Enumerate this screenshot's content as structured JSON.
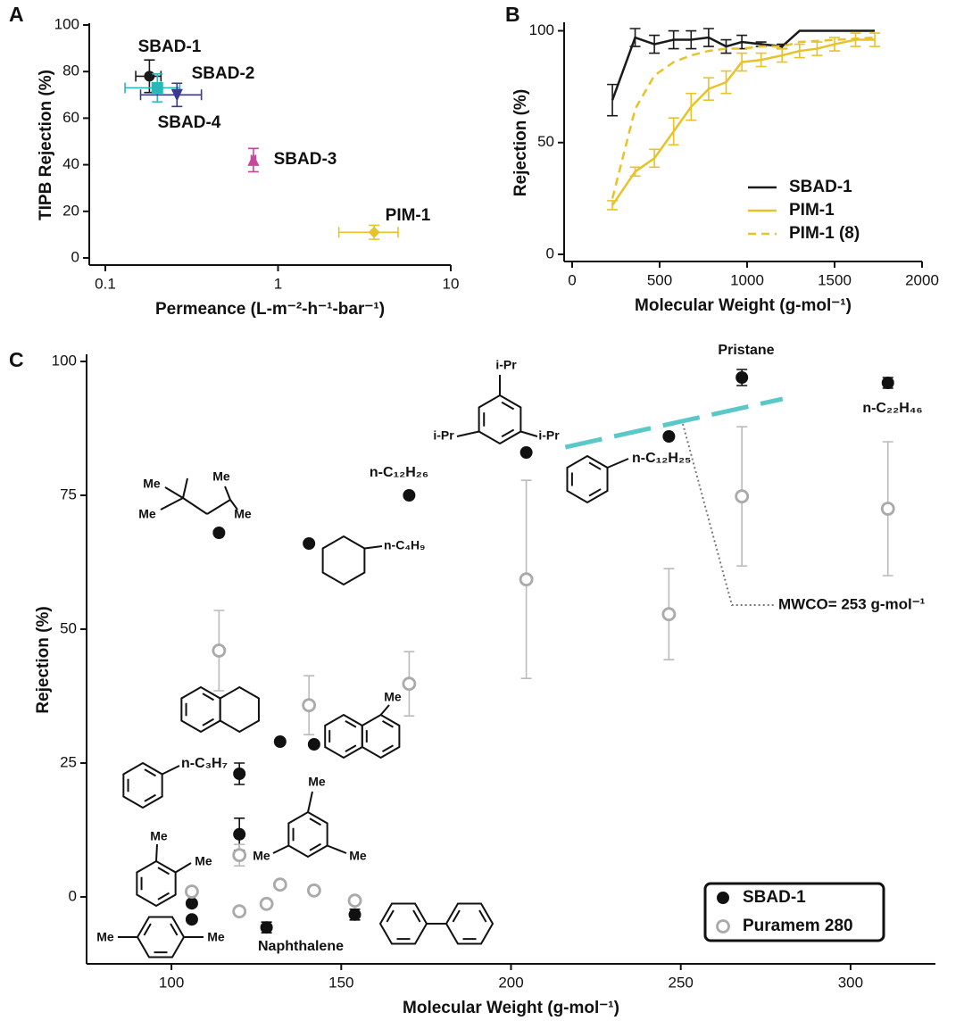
{
  "chart_data": [
    {
      "type": "scatter",
      "panel": "A",
      "xlabel": "Permeance (L-m⁻²-h⁻¹-bar⁻¹)",
      "ylabel": "TIPB Rejection (%)",
      "xscale": "log",
      "xlim": [
        0.1,
        10
      ],
      "xticks": [
        0.1,
        1,
        10
      ],
      "ylim": [
        0,
        100
      ],
      "yticks": [
        0,
        20,
        40,
        60,
        80,
        100
      ],
      "series": [
        {
          "name": "SBAD-1",
          "color": "#1a1a1a",
          "marker": "circle",
          "x": [
            0.18
          ],
          "values": [
            78
          ],
          "xerr": [
            0.03
          ],
          "yerr": [
            7
          ]
        },
        {
          "name": "SBAD-2",
          "color": "#2ab7b7",
          "marker": "square",
          "x": [
            0.2
          ],
          "values": [
            73
          ],
          "xerr": [
            0.07
          ],
          "yerr": [
            6
          ]
        },
        {
          "name": "SBAD-3",
          "color": "#c8479a",
          "marker": "triangle-up",
          "x": [
            0.72
          ],
          "values": [
            42
          ],
          "xerr": [
            0.02
          ],
          "yerr": [
            5
          ]
        },
        {
          "name": "SBAD-4",
          "color": "#3a3a8c",
          "marker": "triangle-down",
          "x": [
            0.26
          ],
          "values": [
            70
          ],
          "xerr": [
            0.1
          ],
          "yerr": [
            5
          ]
        },
        {
          "name": "PIM-1",
          "color": "#e8c22a",
          "marker": "diamond",
          "x": [
            3.6
          ],
          "values": [
            11
          ],
          "xerr": [
            1.35
          ],
          "yerr": [
            3
          ]
        }
      ]
    },
    {
      "type": "line",
      "panel": "B",
      "xlabel": "Molecular Weight (g-mol⁻¹)",
      "ylabel": "Rejection (%)",
      "xlim": [
        0,
        2000
      ],
      "xticks": [
        0,
        500,
        1000,
        1500,
        2000
      ],
      "ylim": [
        0,
        103
      ],
      "yticks": [
        0,
        50,
        100
      ],
      "legend": "lower right",
      "series": [
        {
          "name": "SBAD-1",
          "color": "#1a1a1a",
          "dashed": false,
          "x": [
            230,
            360,
            470,
            580,
            680,
            780,
            880,
            970,
            1080,
            1200,
            1300,
            1730
          ],
          "values": [
            69,
            97,
            94,
            96,
            96,
            97,
            93,
            95,
            94,
            93,
            100,
            100
          ],
          "errors": [
            7,
            4,
            4,
            4,
            4,
            4,
            3,
            3,
            1,
            1,
            null,
            null
          ]
        },
        {
          "name": "PIM-1",
          "color": "#e8c22a",
          "dashed": false,
          "x": [
            230,
            360,
            470,
            580,
            680,
            780,
            880,
            970,
            1080,
            1200,
            1300,
            1400,
            1500,
            1620,
            1730
          ],
          "values": [
            22,
            37,
            43,
            55,
            66,
            74,
            77,
            86,
            87,
            89,
            91,
            92,
            94,
            96,
            96
          ],
          "errors": [
            2,
            2,
            4,
            6,
            6,
            5,
            5,
            4,
            3,
            3,
            3,
            3,
            3,
            3,
            3
          ]
        },
        {
          "name": "PIM-1 (8)",
          "color": "#e8c22a",
          "dashed": true,
          "x": [
            230,
            360,
            470,
            580,
            680,
            780,
            880,
            970,
            1080,
            1200,
            1300,
            1730
          ],
          "values": [
            25,
            65,
            80,
            86,
            89,
            91,
            92,
            92,
            93,
            93,
            95,
            97
          ]
        }
      ]
    },
    {
      "type": "scatter",
      "panel": "C",
      "xlabel": "Molecular Weight (g-mol⁻¹)",
      "ylabel": "Rejection (%)",
      "xlim": [
        75,
        325
      ],
      "xticks": [
        100,
        150,
        200,
        250,
        300
      ],
      "ylim": [
        -12.5,
        101
      ],
      "yticks": [
        0,
        25,
        50,
        75,
        100
      ],
      "legend": "lower right",
      "series": [
        {
          "name": "SBAD-1",
          "color": "#111111",
          "marker": "filled",
          "x": [
            106,
            106,
            114,
            120,
            120,
            128,
            132,
            140.5,
            142,
            154,
            170,
            204.5,
            246.5,
            268,
            311
          ],
          "values": [
            -1.2,
            -4.2,
            68,
            23,
            11.7,
            -5.7,
            29,
            66,
            28.5,
            -3.3,
            75,
            83,
            86,
            97,
            96
          ],
          "errors": [
            null,
            null,
            null,
            2,
            3,
            1,
            null,
            null,
            null,
            1,
            null,
            null,
            null,
            1.5,
            1
          ]
        },
        {
          "name": "Puramem 280",
          "color": "#aaaaaa",
          "marker": "open",
          "x": [
            106,
            114,
            120,
            120,
            128,
            132,
            140.5,
            142,
            154,
            170,
            204.5,
            246.5,
            268,
            311
          ],
          "values": [
            1,
            46,
            7.8,
            -2.7,
            -1.3,
            2.3,
            35.8,
            1.2,
            -0.7,
            39.8,
            59.3,
            52.8,
            74.8,
            72.5
          ],
          "errors": [
            null,
            7.5,
            2,
            null,
            null,
            null,
            5.5,
            null,
            null,
            6,
            18.5,
            8.5,
            13,
            12.5
          ]
        }
      ],
      "fit_line": {
        "color": "#5bc8c8",
        "x": [
          216,
          280
        ],
        "values": [
          84,
          93
        ]
      },
      "annotations": [
        "Pristane",
        "n-C₂₂H₄₆",
        "i-Pr",
        "i-Pr",
        "i-Pr",
        "n-C₁₂H₂₆",
        "n-C₁₂H₂₅",
        "n-C₄H₉",
        "Me",
        "Me",
        "Me",
        "Me",
        "Me",
        "n-C₃H₇",
        "Me",
        "Me",
        "Me",
        "Me",
        "Me",
        "Me",
        "Me",
        "Naphthalene",
        "MWCO= 253 g-mol⁻¹"
      ]
    }
  ]
}
